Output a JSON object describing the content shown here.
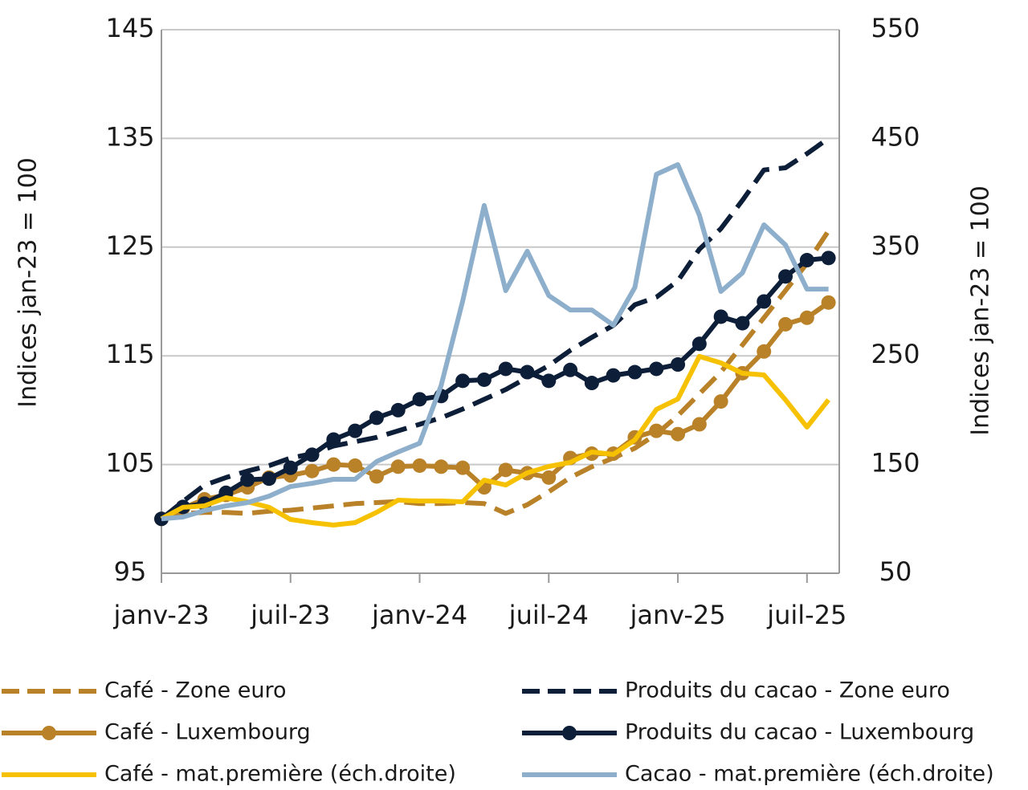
{
  "chart_data": {
    "type": "line",
    "y_label": "Indices jan-23 = 100",
    "y2_label": "Indices jan-23 = 100",
    "categories": [
      "janv-23",
      null,
      null,
      null,
      null,
      null,
      "juil-23",
      null,
      null,
      null,
      null,
      null,
      "janv-24",
      null,
      null,
      null,
      null,
      null,
      "juil-24",
      null,
      null,
      null,
      null,
      null,
      "janv-25",
      null,
      null,
      null,
      null,
      null,
      "juil-25",
      null
    ],
    "ylim": [
      95,
      145
    ],
    "yticks": [
      95,
      105,
      115,
      125,
      135,
      145
    ],
    "y2lim": [
      50,
      550
    ],
    "y2ticks": [
      50,
      150,
      250,
      350,
      450,
      550
    ],
    "grid": true,
    "legend": "bottom",
    "series": [
      {
        "name": "Café - Zone euro",
        "color": "#b98228",
        "dashed": true,
        "markers": false,
        "values": [
          100,
          100.5,
          100.6,
          100.6,
          100.5,
          100.7,
          100.8,
          101,
          101.2,
          101.4,
          101.5,
          101.6,
          101.4,
          101.4,
          101.5,
          101.4,
          100.5,
          101.3,
          102.5,
          103.8,
          104.8,
          105.6,
          106.5,
          107.8,
          109.5,
          111.5,
          113.5,
          116,
          118.5,
          121,
          123.5,
          126.5
        ]
      },
      {
        "name": "Produits du cacao - Zone euro",
        "color": "#0c1e38",
        "dashed": true,
        "markers": false,
        "values": [
          100,
          101.6,
          103.1,
          103.8,
          104.4,
          104.9,
          105.6,
          106,
          106.7,
          107.1,
          107.5,
          108.1,
          108.7,
          109.3,
          110.1,
          111,
          111.9,
          113,
          114.1,
          115.5,
          116.7,
          117.8,
          119.7,
          120.4,
          121.9,
          124.8,
          126.7,
          129.3,
          132.1,
          132.3,
          133.6,
          135
        ]
      },
      {
        "name": "Café - Luxembourg",
        "color": "#b98228",
        "dashed": false,
        "markers": true,
        "values": [
          100,
          101,
          101.8,
          102.2,
          102.9,
          103.8,
          104,
          104.4,
          105,
          104.9,
          103.9,
          104.8,
          104.9,
          104.8,
          104.7,
          102.9,
          104.5,
          104.2,
          103.8,
          105.6,
          106,
          106,
          107.5,
          108.1,
          107.8,
          108.7,
          110.8,
          113.4,
          115.4,
          117.9,
          118.5,
          119.9
        ]
      },
      {
        "name": "Produits du cacao - Luxembourg",
        "color": "#0c1e38",
        "dashed": false,
        "markers": true,
        "values": [
          100,
          101.1,
          101.4,
          102.4,
          103.6,
          103.7,
          104.7,
          105.9,
          107.3,
          108.1,
          109.3,
          110,
          111,
          111.3,
          112.7,
          112.8,
          113.8,
          113.5,
          112.7,
          113.7,
          112.5,
          113.2,
          113.5,
          113.8,
          114.2,
          116.1,
          118.6,
          118,
          120,
          122.3,
          123.8,
          124
        ]
      },
      {
        "name": "Café - mat.première (éch.droite)",
        "color": "#f6c100",
        "dashed": false,
        "markers": false,
        "axis": "y2",
        "values": [
          100,
          110.6,
          112,
          119.4,
          115.7,
          110.6,
          99.5,
          96.5,
          94.3,
          96.5,
          106,
          117.2,
          116.5,
          116.5,
          115.7,
          135.7,
          131.2,
          142.3,
          148.2,
          152,
          161.5,
          159.3,
          172.6,
          200.7,
          210.3,
          249.5,
          243.5,
          233.9,
          232.4,
          209.5,
          184.4,
          209.5
        ]
      },
      {
        "name": "Cacao - mat.première (éch.droite)",
        "color": "#8eafcb",
        "dashed": false,
        "markers": false,
        "axis": "y2",
        "values": [
          100,
          101.7,
          107.6,
          112,
          115,
          120.9,
          129.8,
          132.7,
          136.4,
          136.4,
          152.7,
          161.5,
          169.6,
          222.8,
          300.4,
          388.3,
          310,
          346.2,
          305.5,
          292.2,
          292.2,
          278.2,
          312.9,
          417,
          425.9,
          379.4,
          309.2,
          326.2,
          370.5,
          352,
          311.4,
          311.4
        ]
      }
    ]
  }
}
